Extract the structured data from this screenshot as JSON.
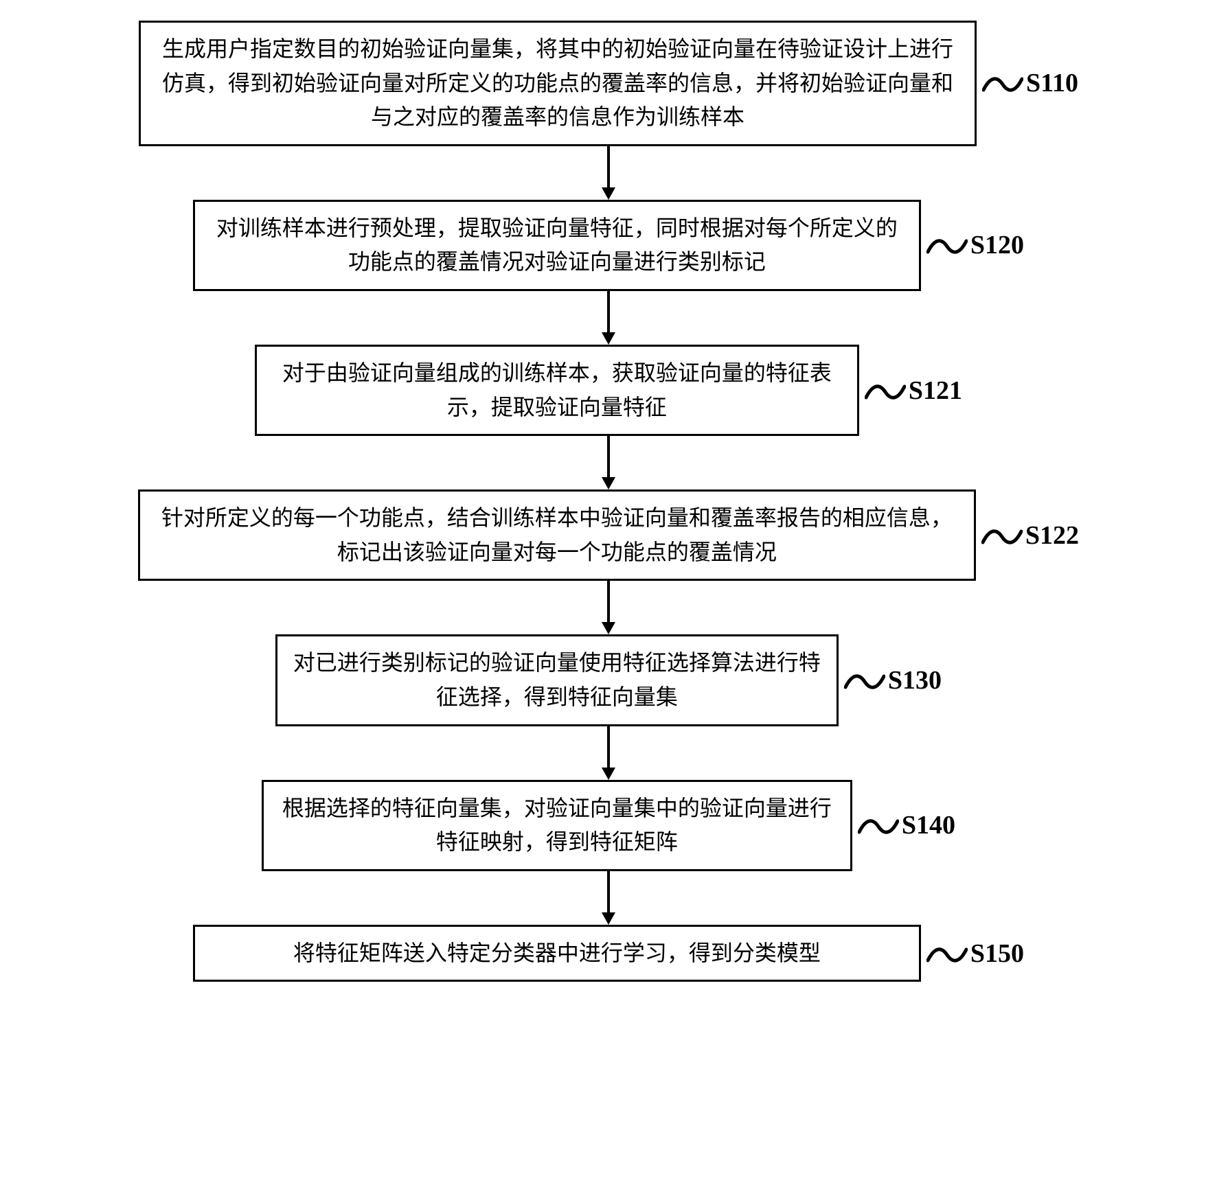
{
  "flowchart": {
    "background_color": "#ffffff",
    "border_color": "#000000",
    "border_width": 3,
    "font_family": "SimSun",
    "font_size": 32,
    "label_font_size": 38,
    "label_font_weight": "bold",
    "arrow": {
      "length": 78,
      "stroke_width": 4,
      "head_width": 20,
      "head_height": 18,
      "color": "#000000"
    },
    "wave": {
      "width": 60,
      "height": 40,
      "stroke_width": 5,
      "color": "#000000"
    },
    "steps": [
      {
        "id": "S110",
        "text": "生成用户指定数目的初始验证向量集，将其中的初始验证向量在待验证设计上进行仿真，得到初始验证向量对所定义的功能点的覆盖率的信息，并将初始验证向量和与之对应的覆盖率的信息作为训练样本",
        "box_width_class": "w1"
      },
      {
        "id": "S120",
        "text": "对训练样本进行预处理，提取验证向量特征，同时根据对每个所定义的功能点的覆盖情况对验证向量进行类别标记",
        "box_width_class": "w2"
      },
      {
        "id": "S121",
        "text": "对于由验证向量组成的训练样本，获取验证向量的特征表示，提取验证向量特征",
        "box_width_class": "w3"
      },
      {
        "id": "S122",
        "text": "针对所定义的每一个功能点，结合训练样本中验证向量和覆盖率报告的相应信息，标记出该验证向量对每一个功能点的覆盖情况",
        "box_width_class": "w4"
      },
      {
        "id": "S130",
        "text": "对已进行类别标记的验证向量使用特征选择算法进行特征选择，得到特征向量集",
        "box_width_class": "w5"
      },
      {
        "id": "S140",
        "text": "根据选择的特征向量集，对验证向量集中的验证向量进行特征映射，得到特征矩阵",
        "box_width_class": "w6"
      },
      {
        "id": "S150",
        "text": "将特征矩阵送入特定分类器中进行学习，得到分类模型",
        "box_width_class": "w7"
      }
    ]
  }
}
